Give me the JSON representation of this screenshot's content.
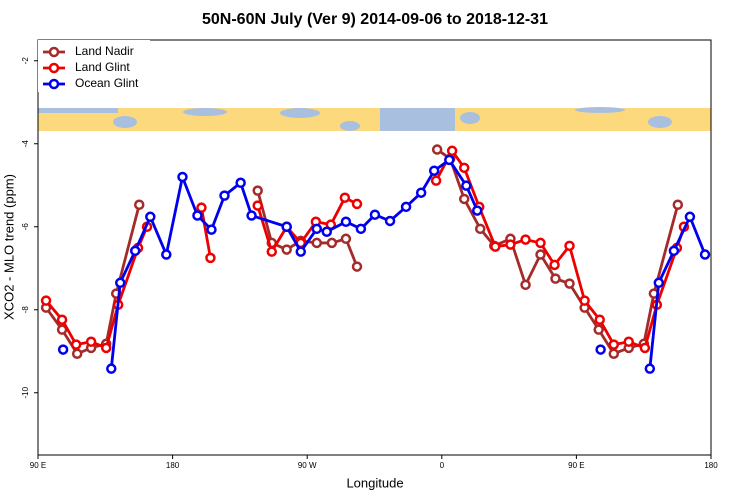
{
  "chart_data": {
    "type": "line",
    "title": "50N-60N July (Ver 9)   2014-09-06 to 2018-12-31",
    "x_label": "Longitude",
    "y_label": "XCO2 - MLO trend (ppm)",
    "xlim": [
      90,
      540
    ],
    "xticks": [
      {
        "value": 90,
        "label": "90 E"
      },
      {
        "value": 180,
        "label": "180"
      },
      {
        "value": 270,
        "label": "90 W"
      },
      {
        "value": 360,
        "label": "0"
      },
      {
        "value": 450,
        "label": "90 E"
      },
      {
        "value": 540,
        "label": "180"
      }
    ],
    "ylim": [
      -11.5,
      -1.5
    ],
    "yticks": [
      -2,
      -4,
      -6,
      -8,
      -10
    ],
    "grid": false,
    "legend": "top-left",
    "series": [
      {
        "name": "Land Nadir",
        "color": "#a52a2a",
        "x": [
          95.4,
          106.1,
          116.2,
          125.5,
          135.6,
          142.3,
          157.7,
          null,
          236.9,
          246.3,
          256.3,
          265.7,
          276.4,
          286.5,
          295.9,
          303.3,
          null,
          356.9,
          365.6,
          375.0,
          385.7,
          395.1,
          405.9,
          416.0,
          426.0,
          436.0,
          445.4,
          455.5,
          464.9,
          475.0,
          485.0,
          495.1,
          501.8,
          517.8
        ],
        "values": [
          -7.95,
          -8.48,
          -9.06,
          -8.92,
          -8.82,
          -7.61,
          -5.47,
          null,
          -5.13,
          -6.39,
          -6.55,
          -6.34,
          -6.39,
          -6.39,
          -6.29,
          -6.96,
          null,
          -4.14,
          -4.36,
          -5.33,
          -6.05,
          -6.46,
          -6.29,
          -7.4,
          -6.67,
          -7.25,
          -7.37,
          -7.95,
          -8.48,
          -9.06,
          -8.92,
          -8.82,
          -7.61,
          -5.47
        ]
      },
      {
        "name": "Land Glint",
        "color": "#ee0000",
        "x": [
          95.4,
          106.1,
          115.5,
          125.5,
          135.6,
          143.6,
          156.9,
          162.9,
          null,
          199.3,
          205.3,
          null,
          236.9,
          246.3,
          256.3,
          265.7,
          275.8,
          285.8,
          295.2,
          303.3,
          null,
          356.2,
          366.9,
          375.0,
          385.0,
          395.8,
          405.9,
          416.0,
          426.0,
          435.4,
          445.4,
          455.5,
          465.6,
          475.0,
          485.0,
          495.8,
          503.8,
          517.2,
          521.9
        ],
        "values": [
          -7.78,
          -8.24,
          -8.84,
          -8.77,
          -8.92,
          -7.88,
          -6.51,
          -6.0,
          null,
          -5.54,
          -6.75,
          null,
          -5.49,
          -6.6,
          -6.0,
          -6.39,
          -5.88,
          -5.95,
          -5.3,
          -5.45,
          null,
          -4.89,
          -4.17,
          -4.58,
          -5.52,
          -6.48,
          -6.43,
          -6.31,
          -6.39,
          -6.92,
          -6.46,
          -7.78,
          -8.24,
          -8.84,
          -8.77,
          -8.92,
          -7.88,
          -6.51,
          -6.0
        ]
      },
      {
        "name": "Ocean Glint",
        "color": "#0000ee",
        "x": [
          106.8,
          null,
          139.0,
          145.0,
          155.0,
          165.1,
          175.8,
          186.6,
          196.6,
          206.0,
          214.7,
          225.5,
          232.8,
          256.3,
          265.7,
          276.4,
          283.1,
          295.9,
          305.9,
          315.3,
          325.4,
          336.1,
          346.2,
          354.9,
          365.0,
          376.4,
          383.7,
          null,
          466.2,
          null,
          499.1,
          505.1,
          515.2,
          525.9,
          536.0
        ],
        "values": [
          -8.96,
          null,
          -9.42,
          -7.35,
          -6.58,
          -5.76,
          -6.67,
          -4.8,
          -5.73,
          -6.07,
          -5.25,
          -4.94,
          -5.73,
          -6.0,
          -6.6,
          -6.05,
          -6.12,
          -5.88,
          -6.05,
          -5.71,
          -5.86,
          -5.52,
          -5.18,
          -4.65,
          -4.39,
          -5.01,
          -5.61,
          null,
          -8.96,
          null,
          -9.42,
          -7.35,
          -6.58,
          -5.76,
          -6.67
        ]
      }
    ]
  }
}
